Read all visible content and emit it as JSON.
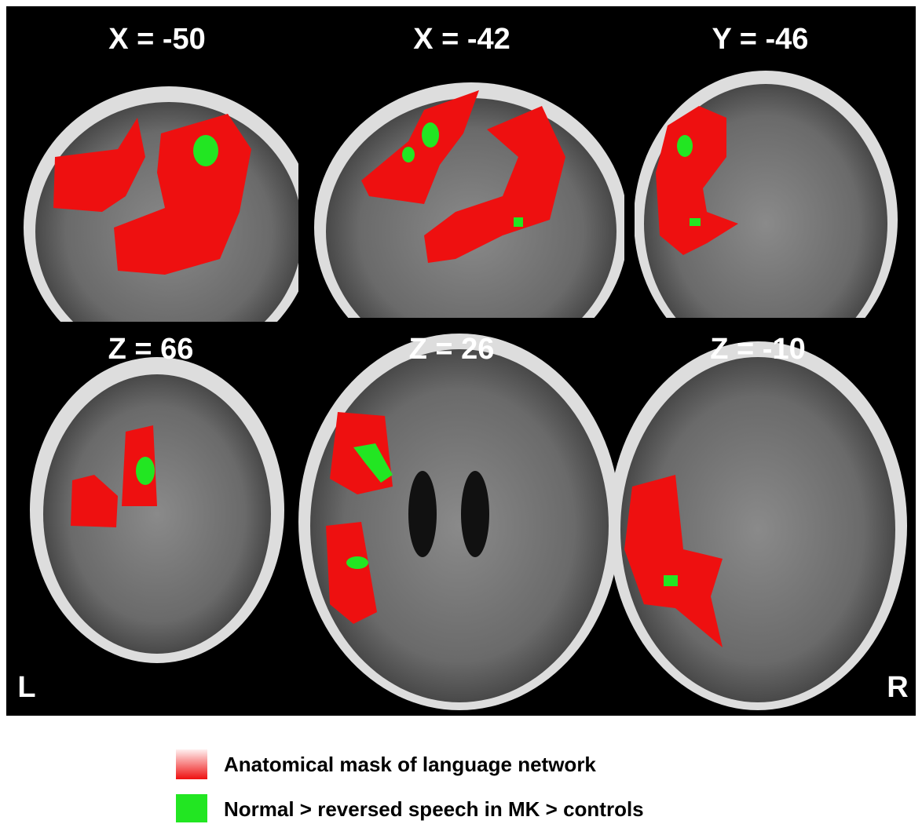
{
  "panels": [
    {
      "label": "X = -50"
    },
    {
      "label": "X = -42"
    },
    {
      "label": "Y = -46"
    },
    {
      "label": "Z = 66"
    },
    {
      "label": "Z = 26"
    },
    {
      "label": "Z = -10"
    }
  ],
  "orientation": {
    "left": "L",
    "right": "R"
  },
  "legend": [
    {
      "label": "Anatomical mask of language network"
    },
    {
      "label": "Normal > reversed speech in MK > controls"
    }
  ]
}
